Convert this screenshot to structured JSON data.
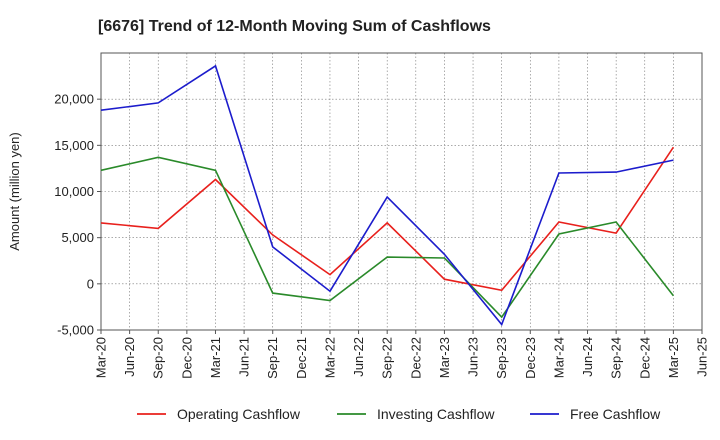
{
  "chart_data": {
    "type": "line",
    "title": "[6676]  Trend of 12-Month Moving Sum of Cashflows",
    "ylabel": "Amount (million yen)",
    "xlabel": "",
    "categories": [
      "Mar-20",
      "Jun-20",
      "Sep-20",
      "Dec-20",
      "Mar-21",
      "Jun-21",
      "Sep-21",
      "Dec-21",
      "Mar-22",
      "Jun-22",
      "Sep-22",
      "Dec-22",
      "Mar-23",
      "Jun-23",
      "Sep-23",
      "Dec-23",
      "Mar-24",
      "Jun-24",
      "Sep-24",
      "Dec-24",
      "Mar-25",
      "Jun-25"
    ],
    "ylim": [
      -5000,
      25000
    ],
    "yticks": [
      -5000,
      0,
      5000,
      10000,
      15000,
      20000
    ],
    "ytick_labels": [
      "-5,000",
      "0",
      "5,000",
      "10,000",
      "15,000",
      "20,000"
    ],
    "grid": true,
    "legend_position": "bottom",
    "series": [
      {
        "name": "Operating Cashflow",
        "color": "#e8201c",
        "points": [
          {
            "x": "Mar-20",
            "y": 6600
          },
          {
            "x": "Sep-20",
            "y": 6000
          },
          {
            "x": "Mar-21",
            "y": 11300
          },
          {
            "x": "Sep-21",
            "y": 5300
          },
          {
            "x": "Mar-22",
            "y": 1000
          },
          {
            "x": "Sep-22",
            "y": 6600
          },
          {
            "x": "Mar-23",
            "y": 500
          },
          {
            "x": "Sep-23",
            "y": -700
          },
          {
            "x": "Mar-24",
            "y": 6700
          },
          {
            "x": "Sep-24",
            "y": 5500
          },
          {
            "x": "Mar-25",
            "y": 14800
          }
        ]
      },
      {
        "name": "Investing Cashflow",
        "color": "#2a8a2a",
        "points": [
          {
            "x": "Mar-20",
            "y": 12300
          },
          {
            "x": "Sep-20",
            "y": 13700
          },
          {
            "x": "Mar-21",
            "y": 12300
          },
          {
            "x": "Sep-21",
            "y": -1000
          },
          {
            "x": "Mar-22",
            "y": -1800
          },
          {
            "x": "Sep-22",
            "y": 2900
          },
          {
            "x": "Mar-23",
            "y": 2800
          },
          {
            "x": "Sep-23",
            "y": -3600
          },
          {
            "x": "Mar-24",
            "y": 5400
          },
          {
            "x": "Sep-24",
            "y": 6700
          },
          {
            "x": "Mar-25",
            "y": -1300
          }
        ]
      },
      {
        "name": "Free Cashflow",
        "color": "#1c1ccc",
        "points": [
          {
            "x": "Mar-20",
            "y": 18800
          },
          {
            "x": "Sep-20",
            "y": 19600
          },
          {
            "x": "Mar-21",
            "y": 23600
          },
          {
            "x": "Sep-21",
            "y": 4000
          },
          {
            "x": "Mar-22",
            "y": -800
          },
          {
            "x": "Sep-22",
            "y": 9400
          },
          {
            "x": "Mar-23",
            "y": 3200
          },
          {
            "x": "Sep-23",
            "y": -4400
          },
          {
            "x": "Mar-24",
            "y": 12000
          },
          {
            "x": "Sep-24",
            "y": 12100
          },
          {
            "x": "Mar-25",
            "y": 13400
          }
        ]
      }
    ]
  }
}
